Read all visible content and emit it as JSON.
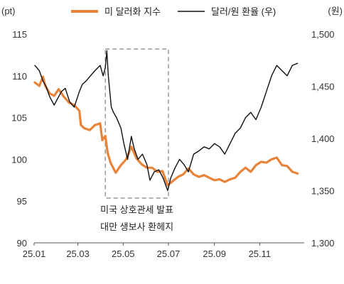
{
  "chart_data": {
    "type": "line",
    "title": "",
    "xlabel": "",
    "left_unit": "(pt)",
    "right_unit": "(원)",
    "x_ticks": [
      "25.01",
      "25.03",
      "25.05",
      "25.07",
      "25.09",
      "25.11"
    ],
    "left_axis": {
      "ylim": [
        90,
        115
      ],
      "ticks": [
        "90",
        "95",
        "100",
        "105",
        "110",
        "115"
      ]
    },
    "right_axis": {
      "ylim": [
        1300,
        1500
      ],
      "ticks": [
        "1,300",
        "1,350",
        "1,400",
        "1,450",
        "1,500"
      ]
    },
    "legend_position": "top",
    "grid": false,
    "series": [
      {
        "name": "미 달러화 지수",
        "axis": "left",
        "color": "#E8833A",
        "x": [
          "25.01.02",
          "25.01.08",
          "25.01.13",
          "25.01.16",
          "25.01.22",
          "25.01.28",
          "25.02.03",
          "25.02.10",
          "25.02.17",
          "25.02.24",
          "25.03.03",
          "25.03.05",
          "25.03.10",
          "25.03.17",
          "25.03.24",
          "25.03.31",
          "25.04.03",
          "25.04.07",
          "25.04.10",
          "25.04.14",
          "25.04.21",
          "25.04.28",
          "25.05.05",
          "25.05.12",
          "25.05.19",
          "25.05.26",
          "25.06.02",
          "25.06.09",
          "25.06.16",
          "25.06.23",
          "25.06.30",
          "25.07.07",
          "25.07.14",
          "25.07.21",
          "25.07.28",
          "25.08.04",
          "25.08.11",
          "25.08.18",
          "25.08.25",
          "25.09.01",
          "25.09.08",
          "25.09.15",
          "25.09.22",
          "25.09.29",
          "25.10.06",
          "25.10.13",
          "25.10.20",
          "25.10.27",
          "25.11.03",
          "25.11.10",
          "25.11.17",
          "25.11.24",
          "25.12.01",
          "25.12.08",
          "25.12.15",
          "25.12.22"
        ],
        "values": [
          109.2,
          108.8,
          109.9,
          108.8,
          107.9,
          107.6,
          108.4,
          107.5,
          106.8,
          106.5,
          105.8,
          104.1,
          103.7,
          103.5,
          104.1,
          104.3,
          102.3,
          102.8,
          100.8,
          99.6,
          98.4,
          99.3,
          100.0,
          101.5,
          100.1,
          99.4,
          99.0,
          99.0,
          98.5,
          98.6,
          96.9,
          97.4,
          97.9,
          98.2,
          98.9,
          98.2,
          97.9,
          98.1,
          97.8,
          97.5,
          97.6,
          97.3,
          97.6,
          97.8,
          98.5,
          99.0,
          98.5,
          99.3,
          99.7,
          99.6,
          100.0,
          100.2,
          99.3,
          99.2,
          98.5,
          98.3
        ]
      },
      {
        "name": "달러/원 환율 (우)",
        "axis": "right",
        "color": "#111111",
        "x": [
          "25.01.02",
          "25.01.08",
          "25.01.13",
          "25.01.17",
          "25.01.22",
          "25.01.28",
          "25.02.03",
          "25.02.07",
          "25.02.12",
          "25.02.18",
          "25.02.24",
          "25.03.03",
          "25.03.07",
          "25.03.12",
          "25.03.18",
          "25.03.24",
          "25.03.31",
          "25.04.04",
          "25.04.07",
          "25.04.09",
          "25.04.11",
          "25.04.15",
          "25.04.18",
          "25.04.22",
          "25.04.28",
          "25.05.02",
          "25.05.07",
          "25.05.12",
          "25.05.16",
          "25.05.21",
          "25.05.27",
          "25.06.02",
          "25.06.06",
          "25.06.12",
          "25.06.18",
          "25.06.24",
          "25.06.30",
          "25.07.04",
          "25.07.10",
          "25.07.16",
          "25.07.22",
          "25.07.28",
          "25.08.04",
          "25.08.11",
          "25.08.18",
          "25.08.25",
          "25.09.01",
          "25.09.08",
          "25.09.15",
          "25.09.22",
          "25.09.29",
          "25.10.06",
          "25.10.13",
          "25.10.20",
          "25.10.27",
          "25.11.03",
          "25.11.10",
          "25.11.17",
          "25.11.24",
          "25.12.01",
          "25.12.08",
          "25.12.15",
          "25.12.22"
        ],
        "values": [
          1470,
          1465,
          1455,
          1450,
          1440,
          1432,
          1440,
          1445,
          1448,
          1435,
          1430,
          1445,
          1452,
          1455,
          1460,
          1465,
          1470,
          1460,
          1468,
          1484,
          1460,
          1430,
          1425,
          1420,
          1410,
          1395,
          1380,
          1402,
          1390,
          1380,
          1385,
          1375,
          1360,
          1368,
          1370,
          1362,
          1350,
          1362,
          1372,
          1380,
          1375,
          1368,
          1385,
          1388,
          1392,
          1390,
          1395,
          1392,
          1385,
          1395,
          1405,
          1410,
          1420,
          1425,
          1418,
          1430,
          1445,
          1460,
          1470,
          1465,
          1460,
          1470,
          1472
        ]
      }
    ],
    "annotation": {
      "shape": "dashed-box",
      "x_range": [
        "25.04.07",
        "25.07.01"
      ],
      "lines": [
        "미국 상호관세 발표",
        "대만 생보사 환헤지"
      ]
    }
  }
}
